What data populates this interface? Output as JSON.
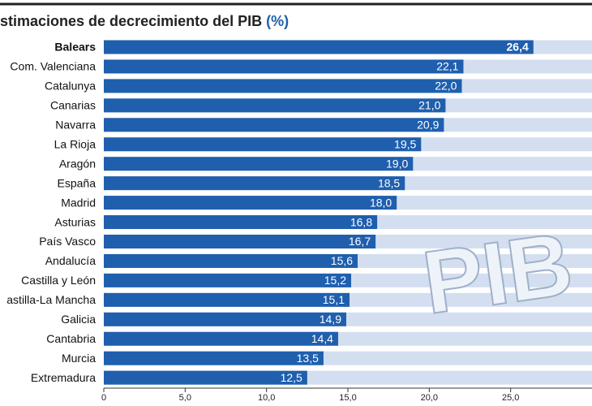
{
  "chart_data": {
    "type": "barh",
    "title": "stimaciones de decrecimiento del PIB",
    "title_unit": "(%)",
    "illustration": "PIB",
    "categories": [
      "Balears",
      "Com. Valenciana",
      "Catalunya",
      "Canarias",
      "Navarra",
      "La Rioja",
      "Aragón",
      "España",
      "Madrid",
      "Asturias",
      "País Vasco",
      "Andalucía",
      "Castilla y León",
      "astilla-La Mancha",
      "Galicia",
      "Cantabria",
      "Murcia",
      "Extremadura"
    ],
    "values": [
      26.4,
      22.1,
      22.0,
      21.0,
      20.9,
      19.5,
      19.0,
      18.5,
      18.0,
      16.8,
      16.7,
      15.6,
      15.2,
      15.1,
      14.9,
      14.4,
      13.5,
      12.5
    ],
    "value_labels": [
      "26,4",
      "22,1",
      "22,0",
      "21,0",
      "20,9",
      "19,5",
      "19,0",
      "18,5",
      "18,0",
      "16,8",
      "16,7",
      "15,6",
      "15,2",
      "15,1",
      "14,9",
      "14,4",
      "13,5",
      "12,5"
    ],
    "color": "#1f5fae",
    "xlim": [
      0,
      30
    ],
    "xticks": [
      0,
      {
        "value": 5,
        "label": "5,0"
      },
      {
        "value": 10,
        "label": "10,0"
      },
      {
        "value": 15,
        "label": "15,0"
      },
      {
        "value": 20,
        "label": "20,0"
      },
      {
        "value": 25,
        "label": "25,0"
      }
    ]
  }
}
